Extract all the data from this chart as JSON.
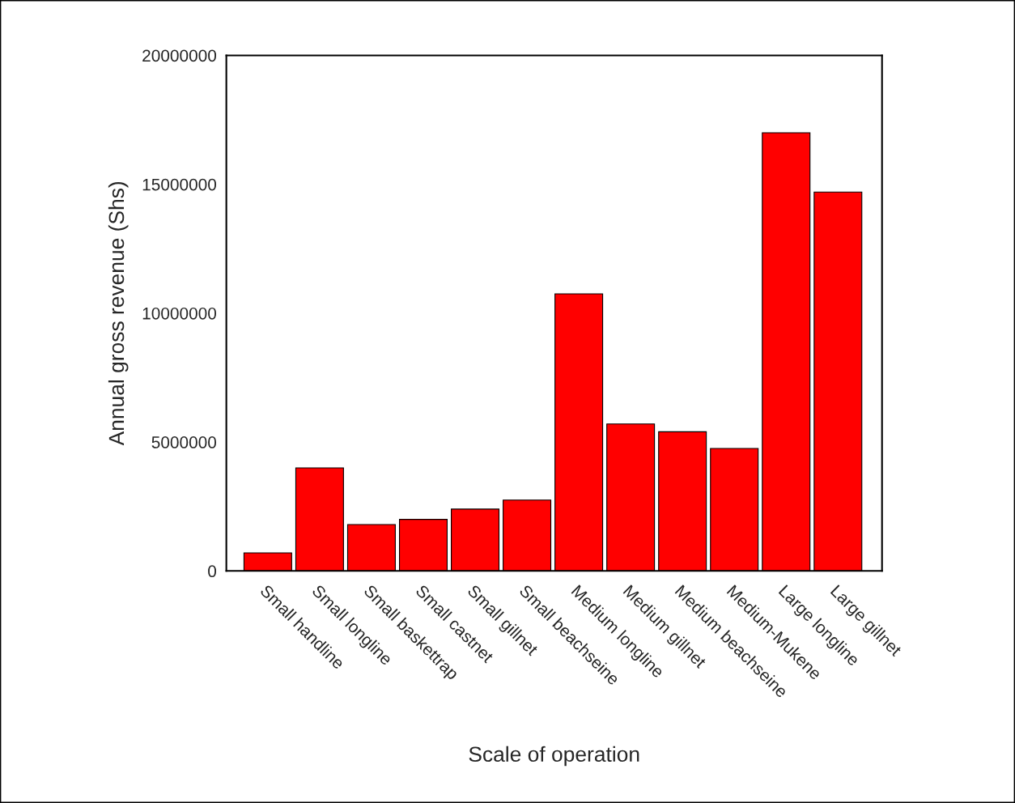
{
  "chart_data": {
    "type": "bar",
    "xlabel": "Scale of operation",
    "ylabel": "Annual gross revenue (Shs)",
    "categories": [
      "Small handline",
      "Small longline",
      "Small baskettrap",
      "Small castnet",
      "Small gillnet",
      "Small beachseine",
      "Medium longline",
      "Medium gillnet",
      "Medium beachseine",
      "Medium-Mukene",
      "Large longline",
      "Large gillnet"
    ],
    "values": [
      700000,
      4000000,
      1800000,
      2000000,
      2400000,
      2750000,
      10750000,
      5700000,
      5400000,
      4750000,
      17000000,
      14700000
    ],
    "color": "#ff0000",
    "ylim": [
      0,
      20000000
    ],
    "yticks": [
      0,
      5000000,
      10000000,
      15000000,
      20000000
    ]
  }
}
